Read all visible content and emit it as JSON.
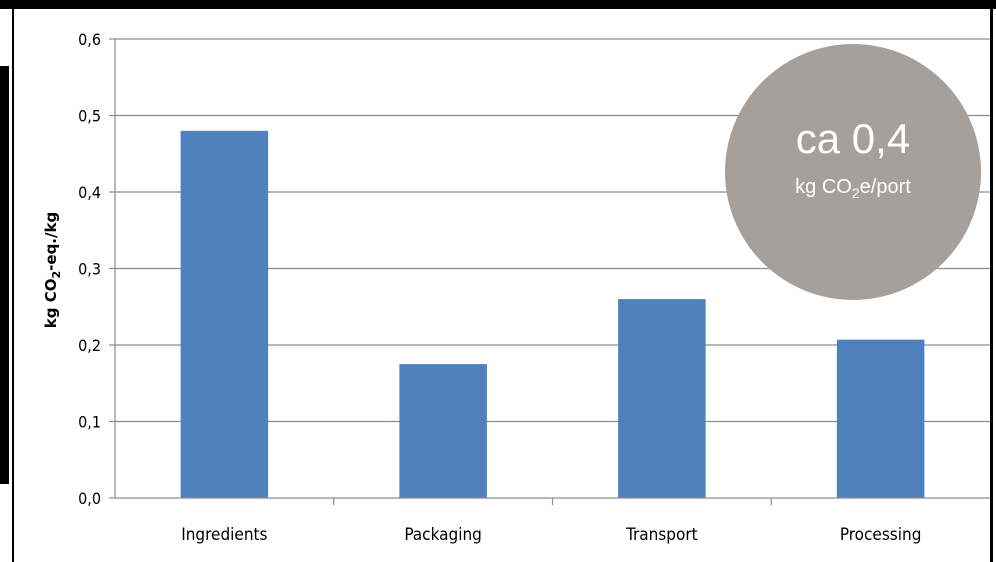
{
  "chart_data": {
    "type": "bar",
    "categories": [
      "Ingredients",
      "Packaging",
      "Transport",
      "Processing"
    ],
    "values": [
      0.48,
      0.175,
      0.26,
      0.207
    ],
    "ylabel": "kg CO₂-eq./kg",
    "ylim": [
      0,
      0.6
    ],
    "yticks": [
      "0,0",
      "0,1",
      "0,2",
      "0,3",
      "0,4",
      "0,5",
      "0,6"
    ],
    "grid": true,
    "bar_color": "#4f81bd"
  },
  "annotation": {
    "main_text": "ca 0,4",
    "unit_prefix": "kg CO",
    "unit_subscript": "2",
    "unit_suffix": "e/port",
    "fill_color": "#a6a09c"
  }
}
